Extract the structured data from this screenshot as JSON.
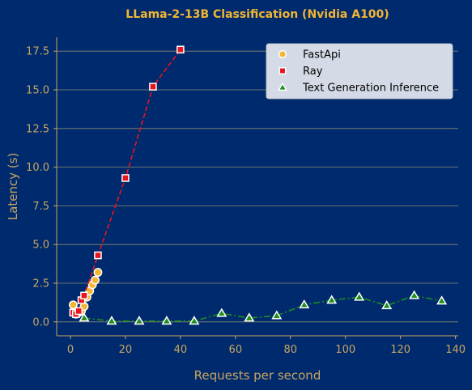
{
  "colors": {
    "background": "#002a6e",
    "text": "#c8a660",
    "title": "#f2b632",
    "grid": "#8a8a6e",
    "axis": "#c8a660",
    "legend_bg": "#d4dae6"
  },
  "chart_data": {
    "type": "line",
    "title": "LLama-2-13B Classification (Nvidia A100)",
    "xlabel": "Requests per second",
    "ylabel": "Latency (s)",
    "xlim": [
      -5,
      141
    ],
    "ylim": [
      -0.9,
      18.4
    ],
    "xticks": [
      0,
      20,
      40,
      60,
      80,
      100,
      120,
      140
    ],
    "yticks": [
      0.0,
      2.5,
      5.0,
      7.5,
      10.0,
      12.5,
      15.0,
      17.5
    ],
    "xtick_labels": [
      "0",
      "20",
      "40",
      "60",
      "80",
      "100",
      "120",
      "140"
    ],
    "ytick_labels": [
      "0.0",
      "2.5",
      "5.0",
      "7.5",
      "10.0",
      "12.5",
      "15.0",
      "17.5"
    ],
    "grid": "horizontal",
    "legend_position": "top-right",
    "series": [
      {
        "name": "FastApi",
        "marker": "circle",
        "color": "#f2b632",
        "line_style": "dashed",
        "line_color": "#f2b632",
        "x": [
          1,
          2,
          3,
          4,
          5,
          6,
          7,
          8,
          9,
          10
        ],
        "y": [
          1.1,
          0.5,
          0.6,
          0.7,
          1.0,
          1.6,
          2.0,
          2.4,
          2.7,
          3.2
        ]
      },
      {
        "name": "Ray",
        "marker": "square",
        "color": "#e8141e",
        "line_style": "dashed",
        "line_color": "#e8141e",
        "x": [
          1,
          2,
          3,
          4,
          5,
          10,
          20,
          30,
          40
        ],
        "y": [
          0.6,
          0.5,
          0.7,
          1.4,
          1.7,
          4.3,
          9.3,
          15.2,
          17.6
        ]
      },
      {
        "name": "Text Generation Inference",
        "marker": "triangle",
        "color": "#1e8c1e",
        "line_style": "dashdot",
        "line_color": "#1e8c1e",
        "x": [
          5,
          15,
          25,
          35,
          45,
          55,
          65,
          75,
          85,
          95,
          105,
          115,
          125,
          135
        ],
        "y": [
          0.25,
          0.05,
          0.05,
          0.05,
          0.05,
          0.55,
          0.25,
          0.4,
          1.1,
          1.4,
          1.6,
          1.05,
          1.7,
          1.35
        ]
      }
    ]
  }
}
